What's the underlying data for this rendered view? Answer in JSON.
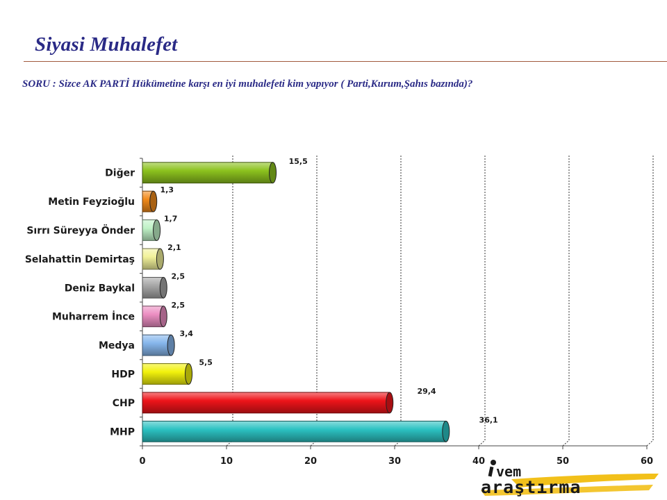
{
  "slide": {
    "title": "Siyasi Muhalefet",
    "question": "SORU : Sizce AK PARTİ Hükümetine karşı en iyi muhalefeti kim yapıyor ( Parti,Kurum,Şahıs bazında)?"
  },
  "chart_data": {
    "type": "bar",
    "orientation": "horizontal",
    "title": "",
    "xlabel": "",
    "ylabel": "",
    "xlim": [
      0,
      60
    ],
    "xticks": [
      0,
      10,
      20,
      30,
      40,
      50,
      60
    ],
    "grid": "vertical dotted",
    "legend": "none",
    "categories": [
      "Diğer",
      "Metin Feyzioğlu",
      "Sırrı Süreyya Önder",
      "Selahattin Demirtaş",
      "Deniz Baykal",
      "Muharrem İnce",
      "Medya",
      "HDP",
      "CHP",
      "MHP"
    ],
    "values": [
      15.5,
      1.3,
      1.7,
      2.1,
      2.5,
      2.5,
      3.4,
      5.5,
      29.4,
      36.1
    ],
    "value_labels": [
      "15,5",
      "1,3",
      "1,7",
      "2,1",
      "2,5",
      "2,5",
      "3,4",
      "5,5",
      "29,4",
      "36,1"
    ],
    "colors": [
      "#8cc21e",
      "#f28a1a",
      "#bff2c6",
      "#f2f29a",
      "#a6a6a6",
      "#ec8ec2",
      "#86b6ec",
      "#f2f20c",
      "#ee141a",
      "#2cc2c2"
    ]
  },
  "logo": {
    "line1": "vem",
    "line2": "araştırma",
    "accent_color": "#f2c01a",
    "ink_color": "#1a1a1a"
  }
}
